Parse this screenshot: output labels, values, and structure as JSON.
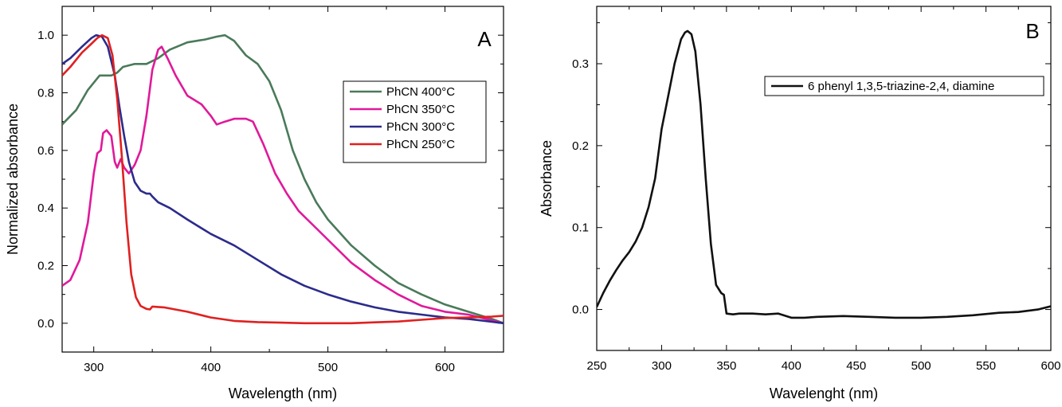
{
  "chart_data": [
    {
      "type": "line",
      "panel_label": "A",
      "xlabel": "Wavelength (nm)",
      "ylabel": "Normalized absorbance",
      "xlim": [
        273,
        650
      ],
      "ylim": [
        -0.1,
        1.1
      ],
      "xticks": [
        300,
        400,
        500,
        600
      ],
      "yticks": [
        0.0,
        0.2,
        0.4,
        0.6,
        0.8,
        1.0
      ],
      "xtick_labels": [
        "300",
        "400",
        "500",
        "600"
      ],
      "ytick_labels": [
        "0.0",
        "0.2",
        "0.4",
        "0.6",
        "0.8",
        "1.0"
      ],
      "grid": false,
      "legend_position": "center-right",
      "series": [
        {
          "name": "PhCN 400°C",
          "color": "#4a7a5a",
          "points": [
            [
              273,
              0.69
            ],
            [
              285,
              0.74
            ],
            [
              295,
              0.81
            ],
            [
              305,
              0.86
            ],
            [
              315,
              0.86
            ],
            [
              320,
              0.87
            ],
            [
              325,
              0.89
            ],
            [
              335,
              0.9
            ],
            [
              345,
              0.9
            ],
            [
              355,
              0.92
            ],
            [
              365,
              0.95
            ],
            [
              380,
              0.975
            ],
            [
              395,
              0.985
            ],
            [
              405,
              0.995
            ],
            [
              412,
              1.0
            ],
            [
              420,
              0.98
            ],
            [
              430,
              0.93
            ],
            [
              440,
              0.9
            ],
            [
              450,
              0.84
            ],
            [
              460,
              0.74
            ],
            [
              470,
              0.6
            ],
            [
              480,
              0.5
            ],
            [
              490,
              0.42
            ],
            [
              500,
              0.36
            ],
            [
              520,
              0.27
            ],
            [
              540,
              0.2
            ],
            [
              560,
              0.14
            ],
            [
              580,
              0.1
            ],
            [
              600,
              0.065
            ],
            [
              620,
              0.04
            ],
            [
              640,
              0.015
            ],
            [
              650,
              0.0
            ]
          ]
        },
        {
          "name": "PhCN 350°C",
          "color": "#e0199a",
          "points": [
            [
              273,
              0.13
            ],
            [
              280,
              0.15
            ],
            [
              288,
              0.22
            ],
            [
              295,
              0.35
            ],
            [
              300,
              0.52
            ],
            [
              303,
              0.59
            ],
            [
              306,
              0.6
            ],
            [
              308,
              0.66
            ],
            [
              311,
              0.67
            ],
            [
              315,
              0.65
            ],
            [
              318,
              0.56
            ],
            [
              320,
              0.54
            ],
            [
              323,
              0.57
            ],
            [
              326,
              0.54
            ],
            [
              330,
              0.52
            ],
            [
              335,
              0.55
            ],
            [
              340,
              0.6
            ],
            [
              345,
              0.72
            ],
            [
              350,
              0.88
            ],
            [
              355,
              0.95
            ],
            [
              358,
              0.96
            ],
            [
              363,
              0.92
            ],
            [
              370,
              0.86
            ],
            [
              380,
              0.79
            ],
            [
              392,
              0.76
            ],
            [
              400,
              0.72
            ],
            [
              405,
              0.69
            ],
            [
              412,
              0.7
            ],
            [
              420,
              0.71
            ],
            [
              430,
              0.71
            ],
            [
              436,
              0.7
            ],
            [
              445,
              0.62
            ],
            [
              455,
              0.52
            ],
            [
              465,
              0.45
            ],
            [
              475,
              0.39
            ],
            [
              490,
              0.33
            ],
            [
              500,
              0.29
            ],
            [
              520,
              0.21
            ],
            [
              540,
              0.15
            ],
            [
              560,
              0.1
            ],
            [
              580,
              0.06
            ],
            [
              600,
              0.04
            ],
            [
              620,
              0.03
            ],
            [
              640,
              0.01
            ],
            [
              650,
              0.0
            ]
          ]
        },
        {
          "name": "PhCN 300°C",
          "color": "#2b2b8c",
          "points": [
            [
              273,
              0.9
            ],
            [
              280,
              0.92
            ],
            [
              290,
              0.96
            ],
            [
              298,
              0.99
            ],
            [
              302,
              1.0
            ],
            [
              307,
              0.995
            ],
            [
              312,
              0.96
            ],
            [
              318,
              0.86
            ],
            [
              322,
              0.75
            ],
            [
              326,
              0.65
            ],
            [
              330,
              0.56
            ],
            [
              335,
              0.49
            ],
            [
              340,
              0.46
            ],
            [
              345,
              0.45
            ],
            [
              348,
              0.45
            ],
            [
              350,
              0.44
            ],
            [
              355,
              0.42
            ],
            [
              365,
              0.4
            ],
            [
              380,
              0.36
            ],
            [
              400,
              0.31
            ],
            [
              420,
              0.27
            ],
            [
              440,
              0.22
            ],
            [
              460,
              0.17
            ],
            [
              480,
              0.13
            ],
            [
              500,
              0.1
            ],
            [
              520,
              0.075
            ],
            [
              540,
              0.055
            ],
            [
              560,
              0.04
            ],
            [
              580,
              0.03
            ],
            [
              600,
              0.02
            ],
            [
              620,
              0.015
            ],
            [
              640,
              0.005
            ],
            [
              650,
              0.0
            ]
          ]
        },
        {
          "name": "PhCN 250°C",
          "color": "#e02020",
          "points": [
            [
              273,
              0.86
            ],
            [
              280,
              0.89
            ],
            [
              290,
              0.94
            ],
            [
              298,
              0.97
            ],
            [
              303,
              0.99
            ],
            [
              307,
              1.0
            ],
            [
              312,
              0.99
            ],
            [
              316,
              0.93
            ],
            [
              320,
              0.78
            ],
            [
              324,
              0.58
            ],
            [
              328,
              0.35
            ],
            [
              332,
              0.17
            ],
            [
              336,
              0.09
            ],
            [
              340,
              0.06
            ],
            [
              345,
              0.05
            ],
            [
              348,
              0.048
            ],
            [
              350,
              0.058
            ],
            [
              360,
              0.055
            ],
            [
              380,
              0.04
            ],
            [
              400,
              0.02
            ],
            [
              420,
              0.008
            ],
            [
              440,
              0.004
            ],
            [
              460,
              0.002
            ],
            [
              480,
              0.0
            ],
            [
              500,
              0.0
            ],
            [
              520,
              0.0
            ],
            [
              540,
              0.003
            ],
            [
              560,
              0.006
            ],
            [
              580,
              0.012
            ],
            [
              600,
              0.018
            ],
            [
              620,
              0.02
            ],
            [
              640,
              0.023
            ],
            [
              650,
              0.026
            ]
          ]
        }
      ]
    },
    {
      "type": "line",
      "panel_label": "B",
      "xlabel": "Wavelenght (nm)",
      "ylabel": "Absorbance",
      "xlim": [
        250,
        600
      ],
      "ylim": [
        -0.05,
        0.37
      ],
      "xticks": [
        250,
        300,
        350,
        400,
        450,
        500,
        550,
        600
      ],
      "yticks": [
        0.0,
        0.1,
        0.2,
        0.3
      ],
      "xtick_labels": [
        "250",
        "300",
        "350",
        "400",
        "450",
        "500",
        "550",
        "600"
      ],
      "ytick_labels": [
        "0.0",
        "0.1",
        "0.2",
        "0.3"
      ],
      "grid": false,
      "legend_position": "top-right",
      "series": [
        {
          "name": "6 phenyl 1,3,5-triazine-2,4, diamine",
          "color": "#111111",
          "points": [
            [
              250,
              0.003
            ],
            [
              255,
              0.02
            ],
            [
              260,
              0.035
            ],
            [
              265,
              0.048
            ],
            [
              270,
              0.06
            ],
            [
              275,
              0.07
            ],
            [
              280,
              0.083
            ],
            [
              285,
              0.1
            ],
            [
              290,
              0.125
            ],
            [
              295,
              0.16
            ],
            [
              300,
              0.22
            ],
            [
              305,
              0.26
            ],
            [
              310,
              0.3
            ],
            [
              315,
              0.33
            ],
            [
              318,
              0.338
            ],
            [
              320,
              0.34
            ],
            [
              323,
              0.336
            ],
            [
              326,
              0.315
            ],
            [
              330,
              0.25
            ],
            [
              334,
              0.16
            ],
            [
              338,
              0.08
            ],
            [
              342,
              0.03
            ],
            [
              346,
              0.02
            ],
            [
              348,
              0.018
            ],
            [
              350,
              -0.005
            ],
            [
              355,
              -0.006
            ],
            [
              360,
              -0.005
            ],
            [
              370,
              -0.005
            ],
            [
              380,
              -0.006
            ],
            [
              390,
              -0.005
            ],
            [
              400,
              -0.01
            ],
            [
              410,
              -0.01
            ],
            [
              420,
              -0.009
            ],
            [
              440,
              -0.008
            ],
            [
              460,
              -0.009
            ],
            [
              480,
              -0.01
            ],
            [
              500,
              -0.01
            ],
            [
              520,
              -0.009
            ],
            [
              540,
              -0.007
            ],
            [
              560,
              -0.004
            ],
            [
              575,
              -0.003
            ],
            [
              590,
              0.0
            ],
            [
              600,
              0.004
            ]
          ]
        }
      ]
    }
  ]
}
